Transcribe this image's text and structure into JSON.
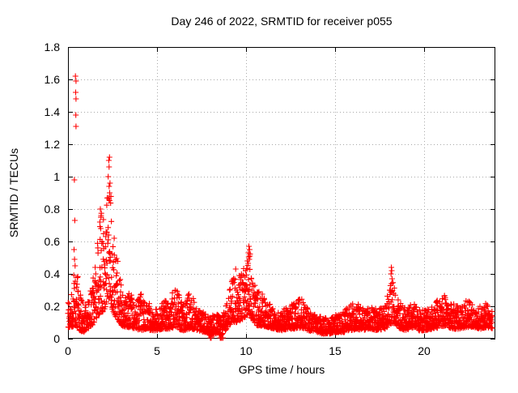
{
  "chart_data": {
    "type": "scatter",
    "title": "Day 246 of 2022, SRMTID for receiver p055",
    "xlabel": "GPS time / hours",
    "ylabel": "SRMTID / TECUs",
    "xlim": [
      0,
      24
    ],
    "ylim": [
      0,
      1.8
    ],
    "xticks": [
      0,
      5,
      10,
      15,
      20
    ],
    "yticks": [
      0,
      0.2,
      0.4,
      0.6,
      0.8,
      1,
      1.2,
      1.4,
      1.6,
      1.8
    ],
    "grid": {
      "show": true,
      "color": "#a8a8a8",
      "dash": "1,3"
    },
    "frame_color": "#000000",
    "background": "#ffffff",
    "legend": "none",
    "marker": {
      "shape": "plus",
      "size": 7,
      "color": "#ff0000"
    },
    "series": [
      {
        "name": "SRMTID",
        "points_per_hour": 120,
        "t_start": 0,
        "t_end": 23.83,
        "seed": 246,
        "skew": 1.7,
        "envelope": [
          [
            0.0,
            0.07,
            0.22
          ],
          [
            0.2,
            0.07,
            0.28
          ],
          [
            0.35,
            0.08,
            0.42
          ],
          [
            0.5,
            0.07,
            0.45
          ],
          [
            0.65,
            0.05,
            0.3
          ],
          [
            0.9,
            0.04,
            0.2
          ],
          [
            1.1,
            0.06,
            0.25
          ],
          [
            1.35,
            0.08,
            0.35
          ],
          [
            1.55,
            0.12,
            0.5
          ],
          [
            1.75,
            0.15,
            0.7
          ],
          [
            1.9,
            0.16,
            0.8
          ],
          [
            2.05,
            0.18,
            0.72
          ],
          [
            2.2,
            0.2,
            0.98
          ],
          [
            2.35,
            0.22,
            1.02
          ],
          [
            2.5,
            0.18,
            0.75
          ],
          [
            2.65,
            0.14,
            0.6
          ],
          [
            2.8,
            0.12,
            0.5
          ],
          [
            3.0,
            0.08,
            0.32
          ],
          [
            3.2,
            0.07,
            0.25
          ],
          [
            3.5,
            0.07,
            0.3
          ],
          [
            3.8,
            0.06,
            0.22
          ],
          [
            4.1,
            0.05,
            0.28
          ],
          [
            4.4,
            0.06,
            0.24
          ],
          [
            4.7,
            0.05,
            0.2
          ],
          [
            5.0,
            0.05,
            0.18
          ],
          [
            5.3,
            0.06,
            0.22
          ],
          [
            5.7,
            0.06,
            0.26
          ],
          [
            6.0,
            0.07,
            0.33
          ],
          [
            6.2,
            0.06,
            0.3
          ],
          [
            6.5,
            0.05,
            0.2
          ],
          [
            6.8,
            0.06,
            0.3
          ],
          [
            7.0,
            0.06,
            0.26
          ],
          [
            7.3,
            0.05,
            0.18
          ],
          [
            7.7,
            0.04,
            0.16
          ],
          [
            8.0,
            0.02,
            0.14
          ],
          [
            8.3,
            0.03,
            0.15
          ],
          [
            8.6,
            0.02,
            0.16
          ],
          [
            8.9,
            0.06,
            0.22
          ],
          [
            9.2,
            0.1,
            0.38
          ],
          [
            9.5,
            0.1,
            0.45
          ],
          [
            9.8,
            0.12,
            0.42
          ],
          [
            10.0,
            0.14,
            0.5
          ],
          [
            10.2,
            0.14,
            0.55
          ],
          [
            10.35,
            0.12,
            0.45
          ],
          [
            10.6,
            0.08,
            0.3
          ],
          [
            10.9,
            0.08,
            0.28
          ],
          [
            11.2,
            0.07,
            0.24
          ],
          [
            11.6,
            0.06,
            0.2
          ],
          [
            12.0,
            0.05,
            0.18
          ],
          [
            12.4,
            0.06,
            0.2
          ],
          [
            12.8,
            0.06,
            0.24
          ],
          [
            13.1,
            0.07,
            0.26
          ],
          [
            13.5,
            0.05,
            0.18
          ],
          [
            13.9,
            0.04,
            0.15
          ],
          [
            14.3,
            0.03,
            0.13
          ],
          [
            14.7,
            0.03,
            0.14
          ],
          [
            15.1,
            0.04,
            0.15
          ],
          [
            15.5,
            0.04,
            0.17
          ],
          [
            15.9,
            0.05,
            0.22
          ],
          [
            16.2,
            0.06,
            0.24
          ],
          [
            16.6,
            0.05,
            0.18
          ],
          [
            17.0,
            0.06,
            0.2
          ],
          [
            17.4,
            0.05,
            0.18
          ],
          [
            17.8,
            0.06,
            0.22
          ],
          [
            18.05,
            0.08,
            0.3
          ],
          [
            18.2,
            0.1,
            0.38
          ],
          [
            18.4,
            0.08,
            0.28
          ],
          [
            18.7,
            0.06,
            0.22
          ],
          [
            19.0,
            0.05,
            0.18
          ],
          [
            19.4,
            0.07,
            0.24
          ],
          [
            19.7,
            0.05,
            0.18
          ],
          [
            20.1,
            0.05,
            0.18
          ],
          [
            20.5,
            0.06,
            0.2
          ],
          [
            20.9,
            0.07,
            0.26
          ],
          [
            21.2,
            0.08,
            0.28
          ],
          [
            21.6,
            0.06,
            0.22
          ],
          [
            22.0,
            0.06,
            0.2
          ],
          [
            22.4,
            0.07,
            0.24
          ],
          [
            22.8,
            0.07,
            0.22
          ],
          [
            23.2,
            0.06,
            0.2
          ],
          [
            23.5,
            0.07,
            0.22
          ],
          [
            24.0,
            0.06,
            0.18
          ]
        ],
        "outliers": [
          [
            0.42,
            1.62
          ],
          [
            0.45,
            1.59
          ],
          [
            0.43,
            1.52
          ],
          [
            0.45,
            1.48
          ],
          [
            0.44,
            1.38
          ],
          [
            0.45,
            1.31
          ],
          [
            0.36,
            0.98
          ],
          [
            0.38,
            0.73
          ],
          [
            0.34,
            0.55
          ],
          [
            0.37,
            0.49
          ],
          [
            0.4,
            0.45
          ],
          [
            1.82,
            0.8
          ],
          [
            1.86,
            0.76
          ],
          [
            1.79,
            0.72
          ],
          [
            1.84,
            0.68
          ],
          [
            2.33,
            1.12
          ],
          [
            2.29,
            1.1
          ],
          [
            2.31,
            1.06
          ],
          [
            2.26,
            1.0
          ],
          [
            2.36,
            0.96
          ],
          [
            2.31,
            0.94
          ],
          [
            2.34,
            0.9
          ],
          [
            2.3,
            0.86
          ],
          [
            10.16,
            0.57
          ],
          [
            10.2,
            0.55
          ],
          [
            10.13,
            0.53
          ],
          [
            10.22,
            0.51
          ],
          [
            10.18,
            0.49
          ],
          [
            18.16,
            0.44
          ],
          [
            18.18,
            0.42
          ],
          [
            18.14,
            0.4
          ],
          [
            18.2,
            0.37
          ],
          [
            8.0,
            0.005
          ],
          [
            8.04,
            0.005
          ],
          [
            8.55,
            0.005
          ],
          [
            8.6,
            0.005
          ],
          [
            8.63,
            0.005
          ],
          [
            8.7,
            0.005
          ]
        ]
      }
    ]
  }
}
